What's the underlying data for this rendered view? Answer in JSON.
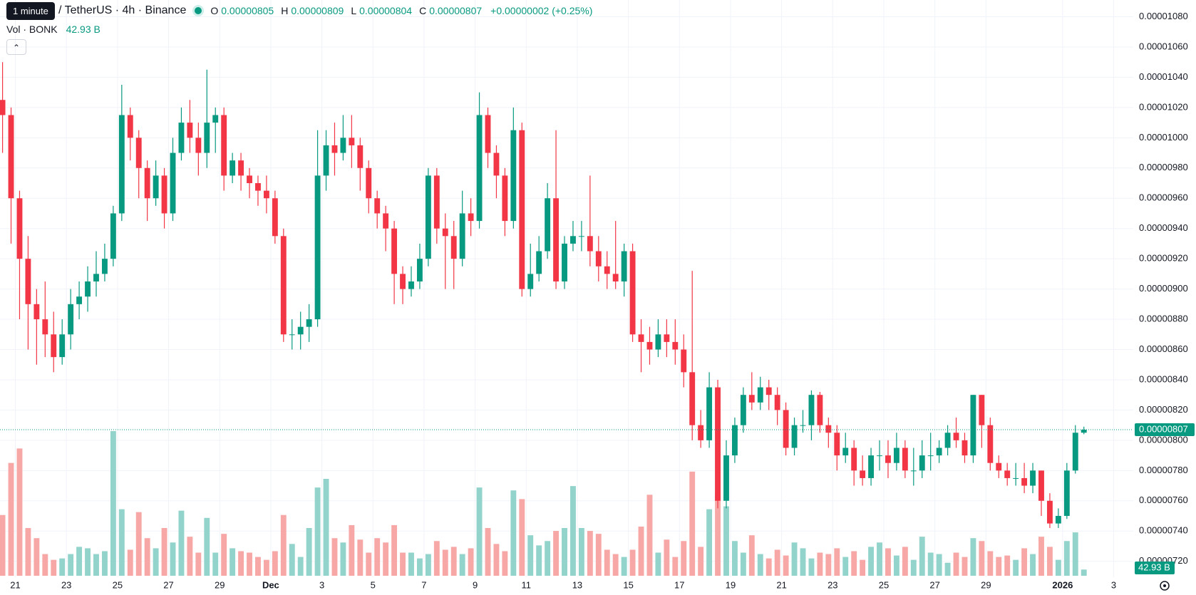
{
  "tooltip": "1 minute",
  "symbol": "/ TetherUS · 4h · Binance",
  "legend": [
    {
      "key": "O",
      "value": "0.00000805"
    },
    {
      "key": "H",
      "value": "0.00000809"
    },
    {
      "key": "L",
      "value": "0.00000804"
    },
    {
      "key": "C",
      "value": "0.00000807"
    }
  ],
  "change": "+0.00000002 (+0.25%)",
  "volume_title": "Vol · BONK",
  "volume_label": "42.93 B",
  "last_price_label": "0.00000807",
  "chart_data": {
    "type": "candlestick",
    "up_color": "#089981",
    "down_color": "#f23645",
    "volume_up_color": "#92d3cb",
    "volume_down_color": "#f7a8a6",
    "grid": true,
    "xlim": [
      -0.3,
      132.8
    ],
    "xticks": [
      {
        "value": 1.5,
        "label": "21"
      },
      {
        "value": 7.5,
        "label": "23"
      },
      {
        "value": 13.5,
        "label": "25"
      },
      {
        "value": 19.5,
        "label": "27"
      },
      {
        "value": 25.5,
        "label": "29"
      },
      {
        "value": 31.5,
        "label": "Dec"
      },
      {
        "value": 37.5,
        "label": "3"
      },
      {
        "value": 43.5,
        "label": "5"
      },
      {
        "value": 49.5,
        "label": "7"
      },
      {
        "value": 55.5,
        "label": "9"
      },
      {
        "value": 61.5,
        "label": "11"
      },
      {
        "value": 67.5,
        "label": "13"
      },
      {
        "value": 73.5,
        "label": "15"
      },
      {
        "value": 79.5,
        "label": "17"
      },
      {
        "value": 85.5,
        "label": "19"
      },
      {
        "value": 91.5,
        "label": "21"
      },
      {
        "value": 97.5,
        "label": "23"
      },
      {
        "value": 103.5,
        "label": "25"
      },
      {
        "value": 109.5,
        "label": "27"
      },
      {
        "value": 115.5,
        "label": "29"
      },
      {
        "value": 124.5,
        "label": "2026"
      },
      {
        "value": 130.5,
        "label": "3"
      }
    ],
    "ylim": [
      7.2e-06,
      1.08e-05
    ],
    "yticks": [
      {
        "value": 7.2e-06,
        "label": "0.00000720"
      },
      {
        "value": 7.4e-06,
        "label": "0.00000740"
      },
      {
        "value": 7.6e-06,
        "label": "0.00000760"
      },
      {
        "value": 7.8e-06,
        "label": "0.00000780"
      },
      {
        "value": 8e-06,
        "label": "0.00000800"
      },
      {
        "value": 8.2e-06,
        "label": "0.00000820"
      },
      {
        "value": 8.4e-06,
        "label": "0.00000840"
      },
      {
        "value": 8.6e-06,
        "label": "0.00000860"
      },
      {
        "value": 8.8e-06,
        "label": "0.00000880"
      },
      {
        "value": 9e-06,
        "label": "0.00000900"
      },
      {
        "value": 9.2e-06,
        "label": "0.00000920"
      },
      {
        "value": 9.4e-06,
        "label": "0.00000940"
      },
      {
        "value": 9.6e-06,
        "label": "0.00000960"
      },
      {
        "value": 9.8e-06,
        "label": "0.00000980"
      },
      {
        "value": 1e-05,
        "label": "0.00001000"
      },
      {
        "value": 1.02e-05,
        "label": "0.00001020"
      },
      {
        "value": 1.04e-05,
        "label": "0.00001040"
      },
      {
        "value": 1.06e-05,
        "label": "0.00001060"
      },
      {
        "value": 1.08e-05,
        "label": "0.00001080"
      }
    ],
    "volume_lim": [
      0,
      1000
    ],
    "open": [
      1.025e-05,
      1.015e-05,
      9.6e-06,
      9.2e-06,
      8.9e-06,
      8.8e-06,
      8.7e-06,
      8.55e-06,
      8.7e-06,
      8.9e-06,
      8.95e-06,
      9.05e-06,
      9.1e-06,
      9.2e-06,
      9.5e-06,
      1.015e-05,
      1e-05,
      9.8e-06,
      9.6e-06,
      9.75e-06,
      9.5e-06,
      9.9e-06,
      1.01e-05,
      1e-05,
      9.9e-06,
      1.01e-05,
      1.015e-05,
      9.75e-06,
      9.85e-06,
      9.75e-06,
      9.7e-06,
      9.65e-06,
      9.6e-06,
      9.35e-06,
      8.7e-06,
      8.7e-06,
      8.75e-06,
      8.8e-06,
      9.75e-06,
      9.95e-06,
      9.9e-06,
      1e-05,
      9.95e-06,
      9.8e-06,
      9.6e-06,
      9.5e-06,
      9.4e-06,
      9.1e-06,
      9e-06,
      9.05e-06,
      9.2e-06,
      9.75e-06,
      9.4e-06,
      9.35e-06,
      9.2e-06,
      9.5e-06,
      9.45e-06,
      1.015e-05,
      9.9e-06,
      9.75e-06,
      9.45e-06,
      1.005e-05,
      9e-06,
      9.1e-06,
      9.25e-06,
      9.6e-06,
      9.05e-06,
      9.3e-06,
      9.35e-06,
      9.35e-06,
      9.25e-06,
      9.15e-06,
      9.1e-06,
      9.05e-06,
      9.25e-06,
      8.7e-06,
      8.65e-06,
      8.6e-06,
      8.7e-06,
      8.65e-06,
      8.6e-06,
      8.45e-06,
      8.1e-06,
      8e-06,
      8.35e-06,
      7.6e-06,
      7.9e-06,
      8.1e-06,
      8.3e-06,
      8.25e-06,
      8.35e-06,
      8.3e-06,
      8.2e-06,
      7.95e-06,
      8.1e-06,
      8.1e-06,
      8.3e-06,
      8.1e-06,
      8.05e-06,
      7.9e-06,
      7.95e-06,
      7.8e-06,
      7.75e-06,
      7.9e-06,
      7.9e-06,
      7.85e-06,
      7.95e-06,
      7.8e-06,
      7.8e-06,
      7.9e-06,
      7.9e-06,
      7.95e-06,
      8.05e-06,
      8e-06,
      7.9e-06,
      8.3e-06,
      8.1e-06,
      7.85e-06,
      7.8e-06,
      7.75e-06,
      7.75e-06,
      7.7e-06,
      7.8e-06,
      7.6e-06,
      7.45e-06,
      7.5e-06,
      7.8e-06,
      8.05e-06
    ],
    "high": [
      1.05e-05,
      1.02e-05,
      9.65e-06,
      9.35e-06,
      9e-06,
      9.05e-06,
      8.85e-06,
      8.8e-06,
      9e-06,
      9.05e-06,
      9.15e-06,
      9.25e-06,
      9.3e-06,
      9.55e-06,
      1.035e-05,
      1.02e-05,
      1.005e-05,
      9.85e-06,
      9.85e-06,
      9.8e-06,
      1e-05,
      1.02e-05,
      1.025e-05,
      1.01e-05,
      1.045e-05,
      1.02e-05,
      1.02e-05,
      9.9e-06,
      9.9e-06,
      9.8e-06,
      9.75e-06,
      9.75e-06,
      9.65e-06,
      9.4e-06,
      8.8e-06,
      8.85e-06,
      8.9e-06,
      1.005e-05,
      1.005e-05,
      1.01e-05,
      1.015e-05,
      1.015e-05,
      1e-05,
      9.85e-06,
      9.65e-06,
      9.55e-06,
      9.45e-06,
      9.15e-06,
      9.15e-06,
      9.3e-06,
      9.8e-06,
      9.8e-06,
      9.5e-06,
      9.45e-06,
      9.65e-06,
      9.6e-06,
      1.03e-05,
      1.02e-05,
      9.95e-06,
      9.8e-06,
      1.02e-05,
      1.01e-05,
      9.3e-06,
      9.35e-06,
      9.7e-06,
      1.005e-05,
      9.35e-06,
      9.45e-06,
      9.45e-06,
      9.75e-06,
      9.35e-06,
      9.25e-06,
      9.45e-06,
      9.3e-06,
      9.3e-06,
      8.8e-06,
      8.75e-06,
      8.8e-06,
      8.8e-06,
      8.8e-06,
      8.7e-06,
      9.12e-06,
      8.2e-06,
      8.45e-06,
      8.4e-06,
      8e-06,
      8.15e-06,
      8.35e-06,
      8.45e-06,
      8.42e-06,
      8.4e-06,
      8.35e-06,
      8.25e-06,
      8.15e-06,
      8.2e-06,
      8.33e-06,
      8.32e-06,
      8.15e-06,
      8.1e-06,
      8.05e-06,
      8e-06,
      7.9e-06,
      7.95e-06,
      8e-06,
      8e-06,
      8.05e-06,
      8e-06,
      7.95e-06,
      8e-06,
      8.05e-06,
      8e-06,
      8.1e-06,
      8.15e-06,
      8.05e-06,
      8.3e-06,
      8.3e-06,
      8.15e-06,
      7.9e-06,
      7.85e-06,
      7.85e-06,
      7.85e-06,
      7.85e-06,
      7.8e-06,
      7.65e-06,
      7.55e-06,
      7.85e-06,
      8.1e-06,
      8.09e-06
    ],
    "low": [
      9.9e-06,
      9.3e-06,
      8.8e-06,
      8.6e-06,
      8.5e-06,
      8.55e-06,
      8.45e-06,
      8.5e-06,
      8.6e-06,
      8.8e-06,
      8.85e-06,
      8.95e-06,
      9.05e-06,
      9.15e-06,
      9.45e-06,
      9.85e-06,
      9.6e-06,
      9.45e-06,
      9.55e-06,
      9.4e-06,
      9.45e-06,
      9.85e-06,
      9.9e-06,
      9.75e-06,
      9.8e-06,
      9.9e-06,
      9.65e-06,
      9.7e-06,
      9.65e-06,
      9.6e-06,
      9.55e-06,
      9.5e-06,
      9.3e-06,
      8.65e-06,
      8.6e-06,
      8.6e-06,
      8.65e-06,
      8.75e-06,
      9.65e-06,
      9.75e-06,
      9.85e-06,
      9.8e-06,
      9.65e-06,
      9.5e-06,
      9.4e-06,
      9.25e-06,
      8.9e-06,
      8.9e-06,
      8.95e-06,
      9e-06,
      9.15e-06,
      9.3e-06,
      9e-06,
      9e-06,
      9.15e-06,
      9.35e-06,
      9.4e-06,
      9.8e-06,
      9.6e-06,
      9.35e-06,
      9.4e-06,
      8.95e-06,
      8.95e-06,
      9.05e-06,
      9.2e-06,
      9e-06,
      9e-06,
      9.25e-06,
      9.25e-06,
      9.15e-06,
      9.05e-06,
      9e-06,
      9e-06,
      8.95e-06,
      8.65e-06,
      8.45e-06,
      8.5e-06,
      8.55e-06,
      8.55e-06,
      8.5e-06,
      8.35e-06,
      8e-06,
      7.95e-06,
      7.95e-06,
      7.55e-06,
      7.55e-06,
      7.85e-06,
      8.05e-06,
      8.2e-06,
      8.2e-06,
      8.2e-06,
      8.1e-06,
      7.9e-06,
      7.9e-06,
      8.05e-06,
      8e-06,
      8.05e-06,
      7.95e-06,
      7.8e-06,
      7.85e-06,
      7.7e-06,
      7.7e-06,
      7.7e-06,
      7.8e-06,
      7.75e-06,
      7.8e-06,
      7.75e-06,
      7.7e-06,
      7.75e-06,
      7.8e-06,
      7.85e-06,
      7.9e-06,
      7.95e-06,
      7.85e-06,
      7.85e-06,
      7.95e-06,
      7.8e-06,
      7.75e-06,
      7.7e-06,
      7.7e-06,
      7.65e-06,
      7.65e-06,
      7.5e-06,
      7.42e-06,
      7.42e-06,
      7.48e-06,
      7.78e-06,
      8.04e-06
    ],
    "close": [
      1.015e-05,
      9.6e-06,
      9.2e-06,
      8.9e-06,
      8.8e-06,
      8.7e-06,
      8.55e-06,
      8.7e-06,
      8.9e-06,
      8.95e-06,
      9.05e-06,
      9.1e-06,
      9.2e-06,
      9.5e-06,
      1.015e-05,
      1e-05,
      9.8e-06,
      9.6e-06,
      9.75e-06,
      9.5e-06,
      9.9e-06,
      1.01e-05,
      1e-05,
      9.9e-06,
      1.01e-05,
      1.015e-05,
      9.75e-06,
      9.85e-06,
      9.75e-06,
      9.7e-06,
      9.65e-06,
      9.6e-06,
      9.35e-06,
      8.7e-06,
      8.7e-06,
      8.75e-06,
      8.8e-06,
      9.75e-06,
      9.95e-06,
      9.9e-06,
      1e-05,
      9.95e-06,
      9.8e-06,
      9.6e-06,
      9.5e-06,
      9.4e-06,
      9.1e-06,
      9e-06,
      9.05e-06,
      9.2e-06,
      9.75e-06,
      9.4e-06,
      9.35e-06,
      9.2e-06,
      9.5e-06,
      9.45e-06,
      1.015e-05,
      9.9e-06,
      9.75e-06,
      9.45e-06,
      1.005e-05,
      9e-06,
      9.1e-06,
      9.25e-06,
      9.6e-06,
      9.05e-06,
      9.3e-06,
      9.35e-06,
      9.35e-06,
      9.25e-06,
      9.15e-06,
      9.1e-06,
      9.05e-06,
      9.25e-06,
      8.7e-06,
      8.65e-06,
      8.6e-06,
      8.7e-06,
      8.65e-06,
      8.6e-06,
      8.45e-06,
      8.1e-06,
      8e-06,
      8.35e-06,
      7.6e-06,
      7.9e-06,
      8.1e-06,
      8.3e-06,
      8.25e-06,
      8.35e-06,
      8.3e-06,
      8.2e-06,
      7.95e-06,
      8.1e-06,
      8.1e-06,
      8.3e-06,
      8.1e-06,
      8.05e-06,
      7.9e-06,
      7.95e-06,
      7.8e-06,
      7.75e-06,
      7.9e-06,
      7.9e-06,
      7.85e-06,
      7.95e-06,
      7.8e-06,
      7.8e-06,
      7.9e-06,
      7.9e-06,
      7.95e-06,
      8.05e-06,
      8e-06,
      7.9e-06,
      8.3e-06,
      8.1e-06,
      7.85e-06,
      7.8e-06,
      7.75e-06,
      7.75e-06,
      7.7e-06,
      7.8e-06,
      7.6e-06,
      7.45e-06,
      7.5e-06,
      7.8e-06,
      8.05e-06,
      8.07e-06
    ],
    "volume": [
      420,
      780,
      880,
      330,
      260,
      150,
      110,
      120,
      150,
      200,
      190,
      150,
      170,
      1000,
      460,
      180,
      440,
      260,
      190,
      330,
      230,
      450,
      270,
      160,
      400,
      160,
      290,
      190,
      170,
      160,
      130,
      110,
      170,
      420,
      220,
      130,
      330,
      610,
      670,
      260,
      230,
      350,
      250,
      160,
      260,
      230,
      350,
      160,
      160,
      120,
      150,
      240,
      180,
      200,
      150,
      190,
      610,
      330,
      220,
      170,
      590,
      530,
      280,
      210,
      240,
      310,
      330,
      620,
      330,
      310,
      290,
      180,
      150,
      130,
      180,
      340,
      560,
      160,
      250,
      130,
      240,
      720,
      200,
      460,
      580,
      480,
      240,
      160,
      280,
      150,
      120,
      180,
      140,
      230,
      190,
      120,
      160,
      150,
      190,
      130,
      170,
      110,
      200,
      230,
      190,
      140,
      200,
      110,
      270,
      160,
      150,
      90,
      160,
      130,
      260,
      240,
      170,
      130,
      140,
      110,
      190,
      150,
      270,
      200,
      110,
      240,
      300,
      42.93
    ]
  }
}
